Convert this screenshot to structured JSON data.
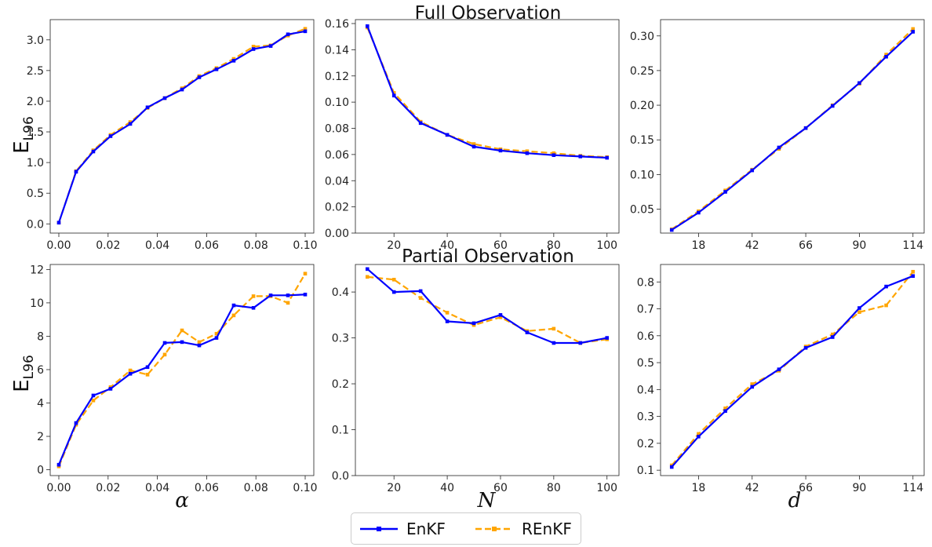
{
  "titles": {
    "top": "Full Observation",
    "bottom": "Partial Observation"
  },
  "ylabel": {
    "main": "E",
    "sub": "L96"
  },
  "xlabels": [
    "α",
    "N",
    "d"
  ],
  "legend": {
    "placement": "bottom-center",
    "entries": [
      {
        "name": "EnKF",
        "color": "#0000ff",
        "style": "solid"
      },
      {
        "name": "REnKF",
        "color": "#ffa500",
        "style": "dashed"
      }
    ]
  },
  "chart_data": [
    {
      "type": "line",
      "panel": "top-left",
      "grid": false,
      "x": [
        0.0,
        0.007,
        0.014,
        0.021,
        0.029,
        0.036,
        0.043,
        0.05,
        0.057,
        0.064,
        0.071,
        0.079,
        0.086,
        0.093,
        0.1
      ],
      "xlim": [
        -0.0035,
        0.1035
      ],
      "ylim": [
        -0.15,
        3.33
      ],
      "xticks": [
        0.0,
        0.02,
        0.04,
        0.06,
        0.08,
        0.1
      ],
      "xtick_labels": [
        "0.00",
        "0.02",
        "0.04",
        "0.06",
        "0.08",
        "0.10"
      ],
      "yticks": [
        0.0,
        0.5,
        1.0,
        1.5,
        2.0,
        2.5,
        3.0
      ],
      "ytick_labels": [
        "0.0",
        "0.5",
        "1.0",
        "1.5",
        "2.0",
        "2.5",
        "3.0"
      ],
      "series": [
        {
          "name": "EnKF",
          "values": [
            0.02,
            0.85,
            1.18,
            1.43,
            1.63,
            1.9,
            2.05,
            2.19,
            2.39,
            2.52,
            2.66,
            2.85,
            2.9,
            3.09,
            3.14
          ]
        },
        {
          "name": "REnKF",
          "values": [
            0.02,
            0.86,
            1.2,
            1.45,
            1.66,
            1.89,
            2.05,
            2.21,
            2.41,
            2.54,
            2.69,
            2.89,
            2.91,
            3.07,
            3.18
          ]
        }
      ]
    },
    {
      "type": "line",
      "panel": "top-middle",
      "grid": false,
      "x": [
        10,
        20,
        30,
        40,
        50,
        60,
        70,
        80,
        90,
        100
      ],
      "xlim": [
        5.5,
        104.5
      ],
      "ylim": [
        0.0,
        0.163
      ],
      "xticks": [
        20,
        40,
        60,
        80,
        100
      ],
      "xtick_labels": [
        "20",
        "40",
        "60",
        "80",
        "100"
      ],
      "yticks": [
        0.0,
        0.02,
        0.04,
        0.06,
        0.08,
        0.1,
        0.12,
        0.14,
        0.16
      ],
      "ytick_labels": [
        "0.00",
        "0.02",
        "0.04",
        "0.06",
        "0.08",
        "0.10",
        "0.12",
        "0.14",
        "0.16"
      ],
      "series": [
        {
          "name": "EnKF",
          "values": [
            0.158,
            0.105,
            0.084,
            0.075,
            0.066,
            0.063,
            0.061,
            0.0595,
            0.0585,
            0.0575
          ]
        },
        {
          "name": "REnKF",
          "values": [
            0.157,
            0.107,
            0.085,
            0.075,
            0.068,
            0.064,
            0.0625,
            0.061,
            0.059,
            0.058
          ]
        }
      ]
    },
    {
      "type": "line",
      "panel": "top-right",
      "grid": false,
      "x": [
        6,
        18,
        30,
        42,
        54,
        66,
        78,
        90,
        102,
        114
      ],
      "xlim": [
        1.0,
        119.0
      ],
      "ylim": [
        0.0155,
        0.3235
      ],
      "xticks": [
        18,
        42,
        66,
        90,
        114
      ],
      "xtick_labels": [
        "18",
        "42",
        "66",
        "90",
        "114"
      ],
      "yticks": [
        0.05,
        0.1,
        0.15,
        0.2,
        0.25,
        0.3
      ],
      "ytick_labels": [
        "0.05",
        "0.10",
        "0.15",
        "0.20",
        "0.25",
        "0.30"
      ],
      "series": [
        {
          "name": "EnKF",
          "values": [
            0.02,
            0.045,
            0.075,
            0.106,
            0.139,
            0.167,
            0.199,
            0.232,
            0.27,
            0.306
          ]
        },
        {
          "name": "REnKF",
          "values": [
            0.021,
            0.047,
            0.077,
            0.107,
            0.137,
            0.167,
            0.2,
            0.231,
            0.273,
            0.31
          ]
        }
      ]
    },
    {
      "type": "line",
      "panel": "bottom-left",
      "grid": false,
      "x": [
        0.0,
        0.007,
        0.014,
        0.021,
        0.029,
        0.036,
        0.043,
        0.05,
        0.057,
        0.064,
        0.071,
        0.079,
        0.086,
        0.093,
        0.1
      ],
      "xlim": [
        -0.0035,
        0.1035
      ],
      "ylim": [
        -0.35,
        12.3
      ],
      "xticks": [
        0.0,
        0.02,
        0.04,
        0.06,
        0.08,
        0.1
      ],
      "xtick_labels": [
        "0.00",
        "0.02",
        "0.04",
        "0.06",
        "0.08",
        "0.10"
      ],
      "yticks": [
        0,
        2,
        4,
        6,
        8,
        10,
        12
      ],
      "ytick_labels": [
        "0",
        "2",
        "4",
        "6",
        "8",
        "10",
        "12"
      ],
      "series": [
        {
          "name": "EnKF",
          "values": [
            0.3,
            2.8,
            4.45,
            4.85,
            5.75,
            6.15,
            7.6,
            7.65,
            7.45,
            7.9,
            9.85,
            9.7,
            10.45,
            10.45,
            10.5
          ]
        },
        {
          "name": "REnKF",
          "values": [
            0.2,
            2.7,
            4.15,
            4.95,
            5.95,
            5.7,
            6.9,
            8.35,
            7.65,
            8.15,
            9.25,
            10.4,
            10.4,
            10.0,
            11.75
          ]
        }
      ]
    },
    {
      "type": "line",
      "panel": "bottom-middle",
      "grid": false,
      "x": [
        10,
        20,
        30,
        40,
        50,
        60,
        70,
        80,
        90,
        100
      ],
      "xlim": [
        5.5,
        104.5
      ],
      "ylim": [
        0.0,
        0.46
      ],
      "xticks": [
        20,
        40,
        60,
        80,
        100
      ],
      "xtick_labels": [
        "20",
        "40",
        "60",
        "80",
        "100"
      ],
      "yticks": [
        0.0,
        0.1,
        0.2,
        0.3,
        0.4
      ],
      "ytick_labels": [
        "0.0",
        "0.1",
        "0.2",
        "0.3",
        "0.4"
      ],
      "series": [
        {
          "name": "EnKF",
          "values": [
            0.45,
            0.4,
            0.402,
            0.336,
            0.332,
            0.35,
            0.312,
            0.289,
            0.289,
            0.3
          ]
        },
        {
          "name": "REnKF",
          "values": [
            0.433,
            0.427,
            0.387,
            0.355,
            0.328,
            0.345,
            0.315,
            0.32,
            0.289,
            0.297
          ]
        }
      ]
    },
    {
      "type": "line",
      "panel": "bottom-right",
      "grid": false,
      "x": [
        6,
        18,
        30,
        42,
        54,
        66,
        78,
        90,
        102,
        114
      ],
      "xlim": [
        1.0,
        119.0
      ],
      "ylim": [
        0.08,
        0.865
      ],
      "xticks": [
        18,
        42,
        66,
        90,
        114
      ],
      "xtick_labels": [
        "18",
        "42",
        "66",
        "90",
        "114"
      ],
      "yticks": [
        0.1,
        0.2,
        0.3,
        0.4,
        0.5,
        0.6,
        0.7,
        0.8
      ],
      "ytick_labels": [
        "0.1",
        "0.2",
        "0.3",
        "0.4",
        "0.5",
        "0.6",
        "0.7",
        "0.8"
      ],
      "series": [
        {
          "name": "EnKF",
          "values": [
            0.112,
            0.225,
            0.32,
            0.41,
            0.475,
            0.555,
            0.595,
            0.703,
            0.783,
            0.822
          ]
        },
        {
          "name": "REnKF",
          "values": [
            0.118,
            0.235,
            0.33,
            0.42,
            0.47,
            0.56,
            0.605,
            0.688,
            0.713,
            0.838
          ]
        }
      ]
    }
  ]
}
